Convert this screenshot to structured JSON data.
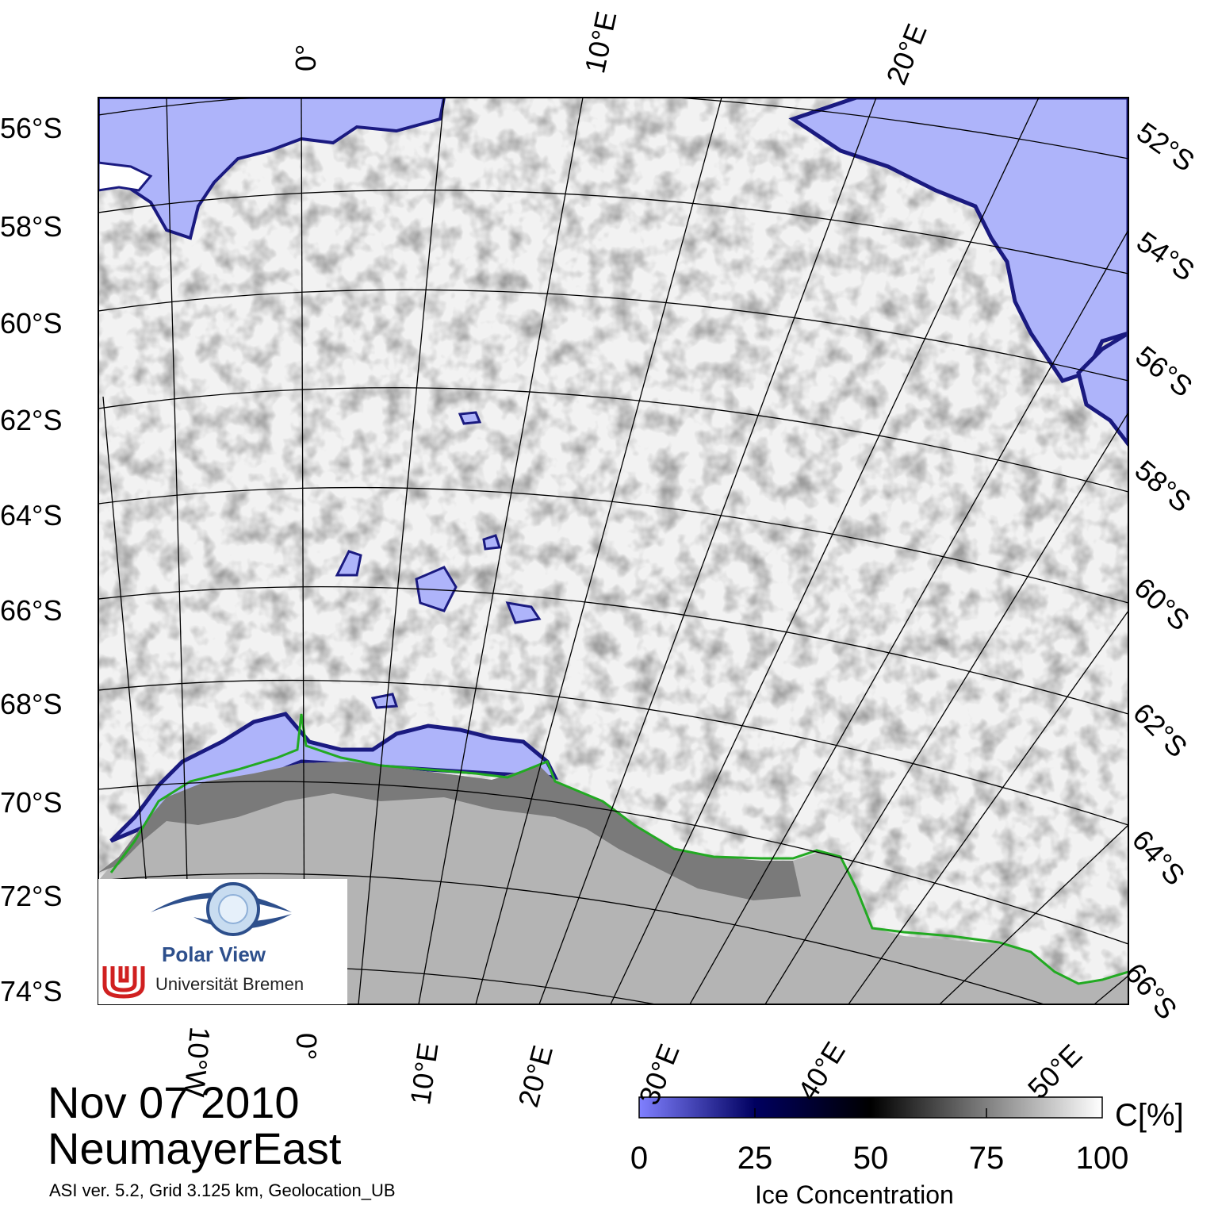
{
  "map": {
    "title_date": "Nov 07 2010",
    "region": "NeumayerEast",
    "info": "ASI ver. 5.2,  Grid 3.125 km, Geolocation_UB",
    "colors": {
      "open_water": "#aeb4fa",
      "ice_edge": "#1a1a80",
      "sea_ice": "#f2f2f2",
      "ice_shelf": "#7a7a7a",
      "land": "#b4b4b4",
      "coastline": "#22aa22",
      "grid": "#000000"
    },
    "lat_labels_left": [
      "56°S",
      "58°S",
      "60°S",
      "62°S",
      "64°S",
      "66°S",
      "68°S",
      "70°S",
      "72°S",
      "74°S"
    ],
    "lat_labels_right": [
      "52°S",
      "54°S",
      "56°S",
      "58°S",
      "60°S",
      "62°S",
      "64°S",
      "66°S"
    ],
    "lon_labels_top": [
      "0°",
      "10°E",
      "20°E"
    ],
    "lon_labels_bottom": [
      "10°W",
      "0°",
      "10°E",
      "20°E",
      "30°E",
      "40°E",
      "50°E"
    ]
  },
  "logo": {
    "title": "Polar View",
    "subtitle": "Universität Bremen",
    "icons": [
      "eye-icon",
      "university-bremen-icon"
    ]
  },
  "colorbar": {
    "unit": "C[%]",
    "title": "Ice Concentration",
    "ticks": [
      "0",
      "25",
      "50",
      "75",
      "100"
    ],
    "min": 0,
    "max": 100,
    "stops": [
      "#8080ff",
      "#000060",
      "#000000",
      "#808080",
      "#ffffff"
    ]
  }
}
